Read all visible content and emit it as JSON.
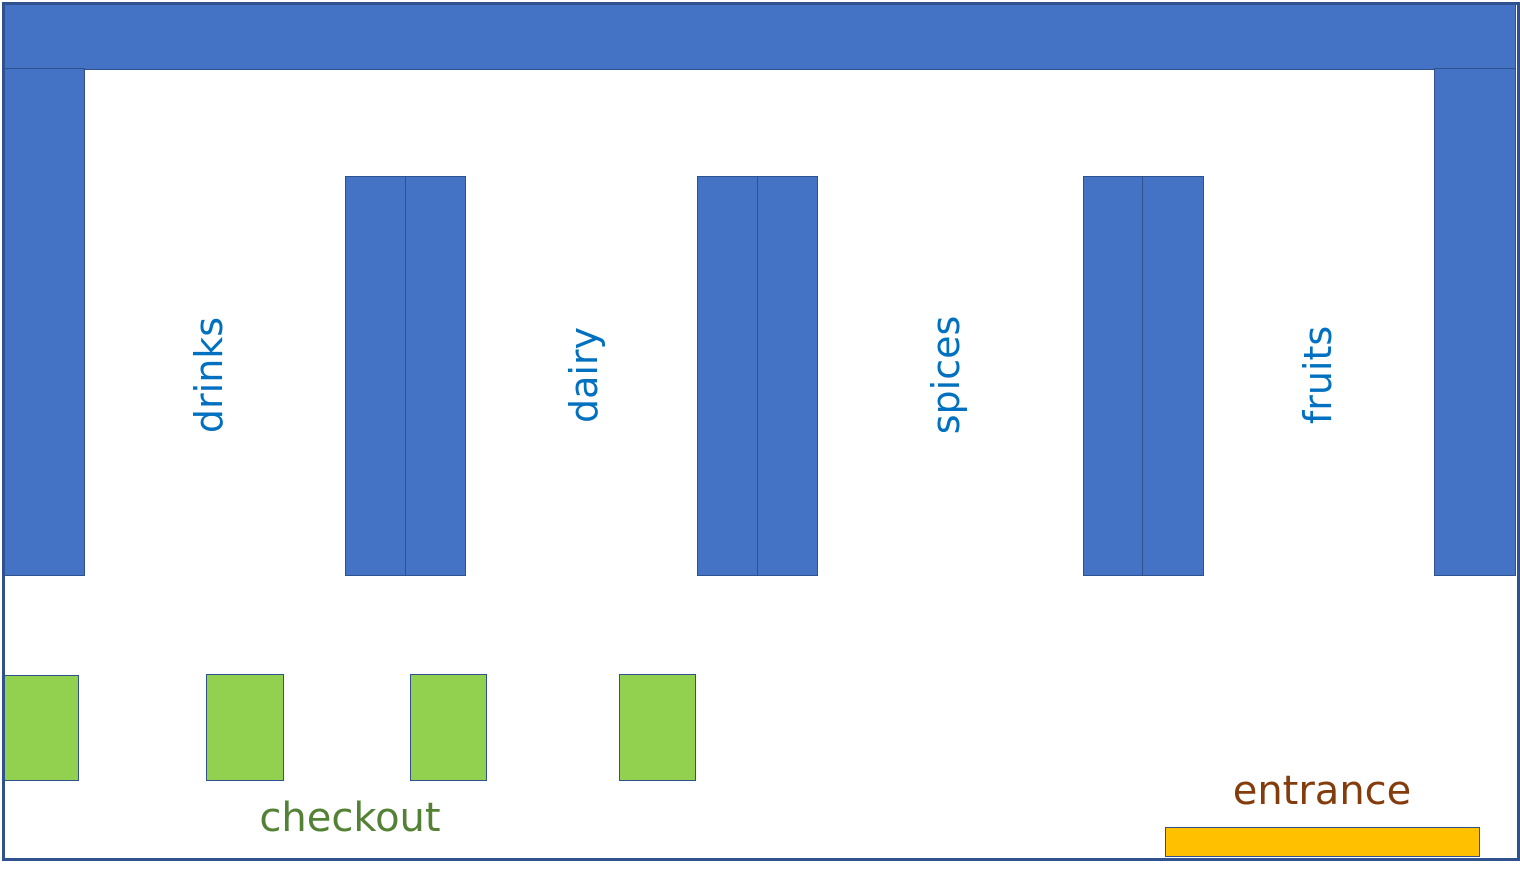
{
  "colors": {
    "shelf": "#4472c4",
    "shelf_border": "#2f528f",
    "checkout_counter": "#92d050",
    "entrance_door": "#ffc000",
    "aisle_text": "#0070c0",
    "checkout_text": "#548235",
    "entrance_text": "#843c0c"
  },
  "aisles": [
    {
      "label": "drinks"
    },
    {
      "label": "dairy"
    },
    {
      "label": "spices"
    },
    {
      "label": "fruits"
    }
  ],
  "checkout": {
    "label": "checkout",
    "counters": 4
  },
  "entrance": {
    "label": "entrance"
  }
}
